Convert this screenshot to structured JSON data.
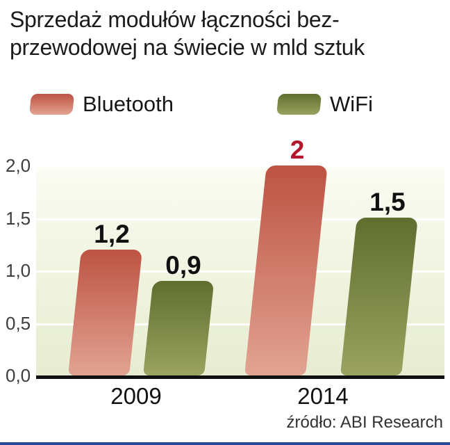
{
  "title": {
    "lines": [
      "Sprzedaż modułów łączności bez-",
      "przewodowej na świecie w mld sztuk"
    ]
  },
  "legend": [
    {
      "label": "Bluetooth",
      "color": "#c05a4a"
    },
    {
      "label": "WiFi",
      "color": "#66743a"
    }
  ],
  "source": "źródło: ABI Research",
  "chart_data": {
    "type": "bar",
    "title": "Sprzedaż modułów łączności bezprzewodowej na świecie w mld sztuk",
    "categories": [
      "2009",
      "2014"
    ],
    "series": [
      {
        "name": "Bluetooth",
        "values": [
          1.2,
          2.0
        ],
        "labels": [
          "1,2",
          "2"
        ],
        "color_top": "#bd5343",
        "color_bottom": "#e2a392"
      },
      {
        "name": "WiFi",
        "values": [
          0.9,
          1.5
        ],
        "labels": [
          "0,9",
          "1,5"
        ],
        "color_top": "#5f6e2f",
        "color_bottom": "#9aa35f"
      }
    ],
    "value_label_colors": [
      [
        "#111111",
        "#b2172b"
      ],
      [
        "#111111",
        "#111111"
      ]
    ],
    "xlabel": "",
    "ylabel": "mld sztuk",
    "ylim": [
      0,
      2.0
    ],
    "yticks": [
      "2,0",
      "1,5",
      "1,0",
      "0,5",
      "0,0"
    ],
    "ytick_values": [
      2.0,
      1.5,
      1.0,
      0.5,
      0.0
    ],
    "grid": true,
    "legend_position": "top",
    "accent_colors": {
      "highlight_value": "#b2172b",
      "baseline": "#101010",
      "bottom_rule": "#2b4a99"
    }
  }
}
